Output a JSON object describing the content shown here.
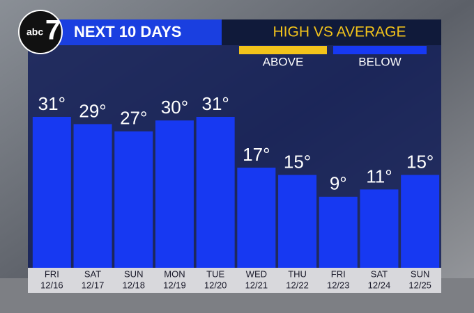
{
  "chart_data": {
    "type": "bar",
    "logo": {
      "brand": "abc",
      "channel": "7"
    },
    "title": "NEXT 10 DAYS",
    "legend": {
      "title": "HIGH VS AVERAGE",
      "items": [
        {
          "name": "ABOVE",
          "color": "#f2c31b"
        },
        {
          "name": "BELOW",
          "color": "#1739f2"
        }
      ]
    },
    "categories": [
      "FRI",
      "SAT",
      "SUN",
      "MON",
      "TUE",
      "WED",
      "THU",
      "FRI",
      "SAT",
      "SUN"
    ],
    "dates": [
      "12/16",
      "12/17",
      "12/18",
      "12/19",
      "12/20",
      "12/21",
      "12/22",
      "12/23",
      "12/24",
      "12/25"
    ],
    "values": [
      31,
      29,
      27,
      30,
      31,
      17,
      15,
      9,
      11,
      15
    ],
    "value_labels": [
      "31°",
      "29°",
      "27°",
      "30°",
      "31°",
      "17°",
      "15°",
      "9°",
      "11°",
      "15°"
    ],
    "color": "#1739f2",
    "ylim": [
      -10,
      40
    ]
  }
}
